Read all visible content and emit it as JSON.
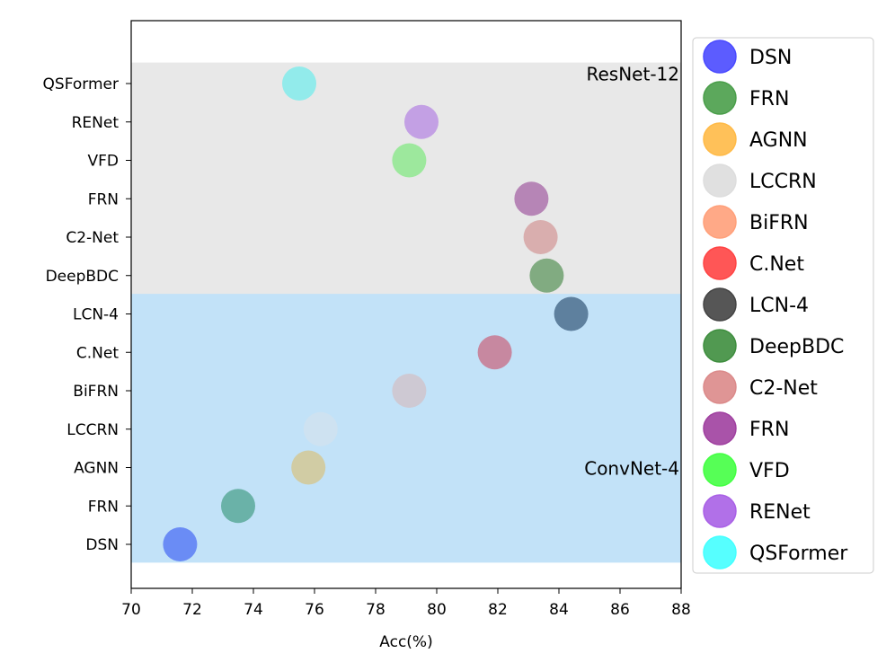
{
  "chart_data": {
    "type": "scatter",
    "title": "",
    "xlabel": "Acc(%)",
    "ylabel": "",
    "xlim": [
      70,
      88
    ],
    "xticks": [
      70,
      72,
      74,
      76,
      78,
      80,
      82,
      84,
      86,
      88
    ],
    "grid": false,
    "legend_position": "right, outside",
    "categories": [
      "DSN",
      "FRN",
      "AGNN",
      "LCCRN",
      "BiFRN",
      "C.Net",
      "LCN-4",
      "DeepBDC",
      "C2-Net",
      "FRN",
      "VFD",
      "RENet",
      "QSFormer"
    ],
    "regions": [
      {
        "label": "ConvNet-4",
        "from_category": 0,
        "to_category": 6,
        "color": "#c2e2f8"
      },
      {
        "label": "ResNet-12",
        "from_category": 7,
        "to_category": 12,
        "color": "#e8e8e8"
      }
    ],
    "series": [
      {
        "name": "DSN",
        "category": 0,
        "value": 71.6,
        "legend_color": "#4a4aff",
        "point_color": "#5b7df5"
      },
      {
        "name": "FRN",
        "category": 1,
        "value": 73.5,
        "legend_color": "#4a9e4a",
        "point_color": "#5aa99a"
      },
      {
        "name": "AGNN",
        "category": 2,
        "value": 75.8,
        "legend_color": "#ffba47",
        "point_color": "#d4c895"
      },
      {
        "name": "LCCRN",
        "category": 3,
        "value": 76.2,
        "legend_color": "#dddddd",
        "point_color": "#d0e2f0"
      },
      {
        "name": "BiFRN",
        "category": 4,
        "value": 79.1,
        "legend_color": "#ffa07a",
        "point_color": "#d0c4cc"
      },
      {
        "name": "C.Net",
        "category": 5,
        "value": 81.9,
        "legend_color": "#ff4444",
        "point_color": "#c87890"
      },
      {
        "name": "LCN-4",
        "category": 6,
        "value": 84.4,
        "legend_color": "#444444",
        "point_color": "#4c6f8e"
      },
      {
        "name": "DeepBDC",
        "category": 7,
        "value": 83.6,
        "legend_color": "#3e8e3e",
        "point_color": "#6ea06e"
      },
      {
        "name": "C2-Net",
        "category": 8,
        "value": 83.4,
        "legend_color": "#db8a8a",
        "point_color": "#d6a3a3"
      },
      {
        "name": "FRN",
        "category": 9,
        "value": 83.1,
        "legend_color": "#a040a0",
        "point_color": "#ad73ad"
      },
      {
        "name": "VFD",
        "category": 10,
        "value": 79.1,
        "legend_color": "#44ff44",
        "point_color": "#8fe88f"
      },
      {
        "name": "RENet",
        "category": 11,
        "value": 79.5,
        "legend_color": "#a960e6",
        "point_color": "#bc93e3"
      },
      {
        "name": "QSFormer",
        "category": 12,
        "value": 75.5,
        "legend_color": "#44ffff",
        "point_color": "#83ebeb"
      }
    ]
  }
}
